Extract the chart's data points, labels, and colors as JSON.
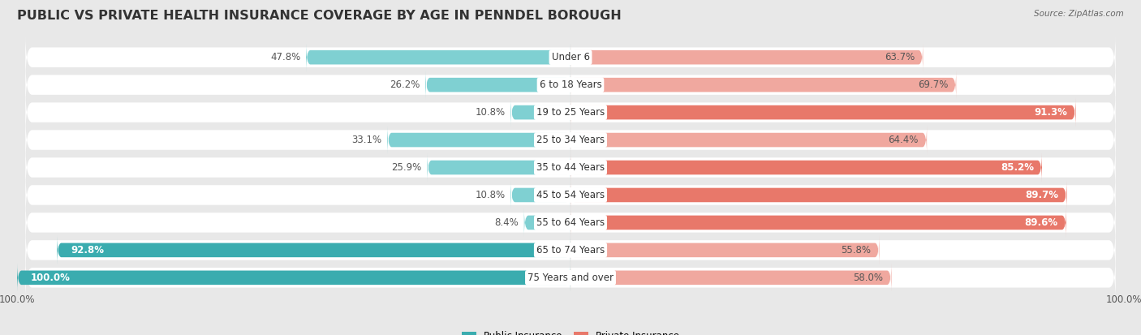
{
  "title": "PUBLIC VS PRIVATE HEALTH INSURANCE COVERAGE BY AGE IN PENNDEL BOROUGH",
  "source": "Source: ZipAtlas.com",
  "categories": [
    "Under 6",
    "6 to 18 Years",
    "19 to 25 Years",
    "25 to 34 Years",
    "35 to 44 Years",
    "45 to 54 Years",
    "55 to 64 Years",
    "65 to 74 Years",
    "75 Years and over"
  ],
  "public_values": [
    47.8,
    26.2,
    10.8,
    33.1,
    25.9,
    10.8,
    8.4,
    92.8,
    100.0
  ],
  "private_values": [
    63.7,
    69.7,
    91.3,
    64.4,
    85.2,
    89.7,
    89.6,
    55.8,
    58.0
  ],
  "public_color_dark": "#3aacaf",
  "public_color_light": "#7fd0d2",
  "private_color_dark": "#e8786a",
  "private_color_light": "#f0a89f",
  "bg_color": "#e8e8e8",
  "bar_bg_color": "#ffffff",
  "legend_labels": [
    "Public Insurance",
    "Private Insurance"
  ],
  "title_fontsize": 11.5,
  "label_fontsize": 8.5,
  "value_fontsize": 8.5,
  "tick_fontsize": 8.5,
  "max_value": 100.0,
  "public_dark_threshold": 50.0,
  "private_dark_threshold": 70.0
}
